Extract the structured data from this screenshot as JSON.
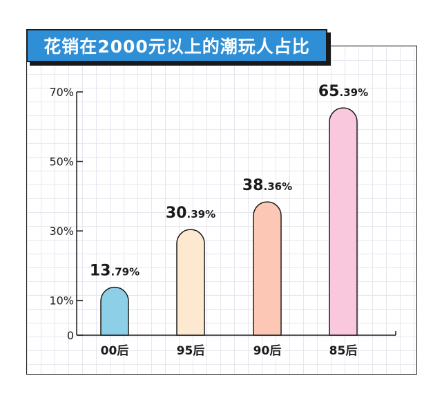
{
  "header": {
    "title": "花销在2000元以上的潮玩人占比"
  },
  "colors": {
    "title_bg": "#2f8fd6",
    "axis": "#1a1a1a",
    "bars": [
      "#8ecfe8",
      "#fde9d0",
      "#fdc7b5",
      "#f9c8dc"
    ]
  },
  "chart_data": {
    "type": "bar",
    "title": "花销在2000元以上的潮玩人占比",
    "categories": [
      "00后",
      "95后",
      "90后",
      "85后"
    ],
    "values": [
      13.79,
      30.39,
      38.36,
      65.39
    ],
    "value_labels": [
      {
        "int": "13",
        "dec": ".79%"
      },
      {
        "int": "30",
        "dec": ".39%"
      },
      {
        "int": "38",
        "dec": ".36%"
      },
      {
        "int": "65",
        "dec": ".39%"
      }
    ],
    "y_ticks": [
      {
        "value": 0,
        "label": "0"
      },
      {
        "value": 10,
        "label": "10%"
      },
      {
        "value": 30,
        "label": "30%"
      },
      {
        "value": 50,
        "label": "50%"
      },
      {
        "value": 70,
        "label": "70%"
      }
    ],
    "ylim": [
      0,
      70
    ],
    "xlabel": "",
    "ylabel": "",
    "grid": true,
    "legend": "none"
  }
}
